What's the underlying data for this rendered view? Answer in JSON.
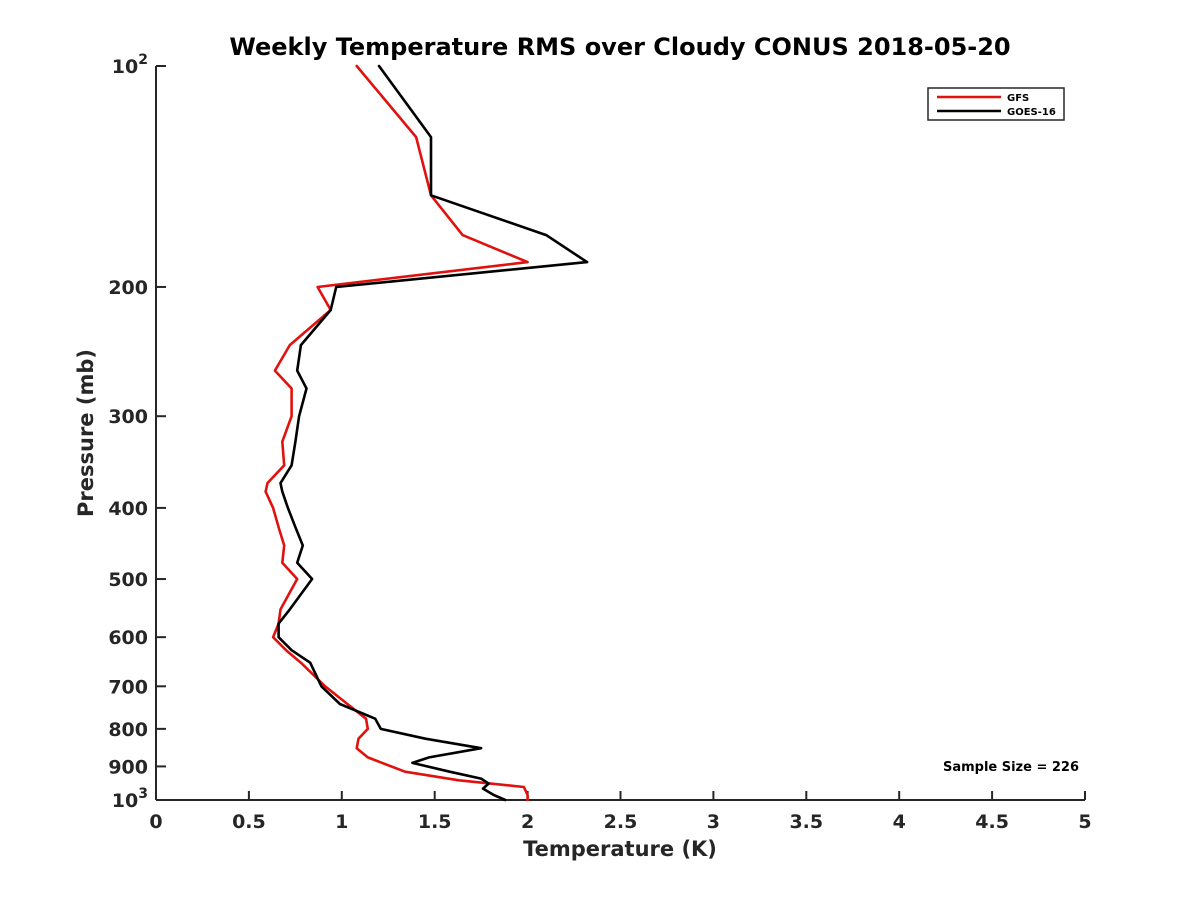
{
  "chart_data": {
    "type": "line",
    "title": "Weekly Temperature RMS over Cloudy CONUS 2018-05-20",
    "xlabel": "Temperature (K)",
    "ylabel": "Pressure (mb)",
    "xlim": [
      0,
      5
    ],
    "ylim": [
      100,
      1000
    ],
    "y_scale": "log",
    "y_reversed": true,
    "grid": false,
    "legend_position": "top-right",
    "x_ticks": [
      "0",
      "0.5",
      "1",
      "1.5",
      "2",
      "2.5",
      "3",
      "3.5",
      "4",
      "4.5",
      "5"
    ],
    "y_ticks": [
      {
        "value": 100,
        "base": "10",
        "exp": "2"
      },
      {
        "value": 200,
        "label": "200"
      },
      {
        "value": 300,
        "label": "300"
      },
      {
        "value": 400,
        "label": "400"
      },
      {
        "value": 500,
        "label": "500"
      },
      {
        "value": 600,
        "label": "600"
      },
      {
        "value": 700,
        "label": "700"
      },
      {
        "value": 800,
        "label": "800"
      },
      {
        "value": 900,
        "label": "900"
      },
      {
        "value": 1000,
        "base": "10",
        "exp": "3"
      }
    ],
    "annotation": "Sample Size = 226",
    "series": [
      {
        "name": "GFS",
        "color": "#e0120f",
        "points": [
          [
            1.08,
            100
          ],
          [
            1.4,
            125
          ],
          [
            1.48,
            150
          ],
          [
            1.65,
            170
          ],
          [
            2.0,
            185
          ],
          [
            0.87,
            200
          ],
          [
            0.94,
            215
          ],
          [
            0.72,
            240
          ],
          [
            0.64,
            260
          ],
          [
            0.73,
            275
          ],
          [
            0.73,
            300
          ],
          [
            0.68,
            325
          ],
          [
            0.69,
            350
          ],
          [
            0.6,
            370
          ],
          [
            0.59,
            380
          ],
          [
            0.63,
            400
          ],
          [
            0.66,
            425
          ],
          [
            0.69,
            450
          ],
          [
            0.68,
            475
          ],
          [
            0.76,
            500
          ],
          [
            0.67,
            550
          ],
          [
            0.66,
            575
          ],
          [
            0.63,
            600
          ],
          [
            0.7,
            625
          ],
          [
            0.78,
            650
          ],
          [
            0.91,
            700
          ],
          [
            1.03,
            740
          ],
          [
            1.13,
            775
          ],
          [
            1.14,
            800
          ],
          [
            1.09,
            825
          ],
          [
            1.08,
            850
          ],
          [
            1.14,
            875
          ],
          [
            1.34,
            915
          ],
          [
            1.63,
            940
          ],
          [
            1.98,
            960
          ],
          [
            2.0,
            985
          ],
          [
            2.0,
            1000
          ]
        ]
      },
      {
        "name": "GOES-16",
        "color": "#000000",
        "points": [
          [
            1.2,
            100
          ],
          [
            1.48,
            125
          ],
          [
            1.48,
            150
          ],
          [
            2.1,
            170
          ],
          [
            2.32,
            185
          ],
          [
            0.97,
            200
          ],
          [
            0.94,
            215
          ],
          [
            0.78,
            240
          ],
          [
            0.76,
            260
          ],
          [
            0.81,
            275
          ],
          [
            0.77,
            300
          ],
          [
            0.75,
            325
          ],
          [
            0.73,
            350
          ],
          [
            0.67,
            370
          ],
          [
            0.68,
            380
          ],
          [
            0.71,
            400
          ],
          [
            0.75,
            425
          ],
          [
            0.79,
            450
          ],
          [
            0.76,
            475
          ],
          [
            0.84,
            500
          ],
          [
            0.72,
            550
          ],
          [
            0.66,
            575
          ],
          [
            0.66,
            600
          ],
          [
            0.73,
            625
          ],
          [
            0.83,
            650
          ],
          [
            0.89,
            700
          ],
          [
            0.99,
            740
          ],
          [
            1.18,
            775
          ],
          [
            1.21,
            800
          ],
          [
            1.45,
            825
          ],
          [
            1.75,
            850
          ],
          [
            1.47,
            875
          ],
          [
            1.38,
            890
          ],
          [
            1.58,
            915
          ],
          [
            1.75,
            935
          ],
          [
            1.79,
            950
          ],
          [
            1.76,
            965
          ],
          [
            1.82,
            985
          ],
          [
            1.88,
            1000
          ]
        ]
      }
    ]
  }
}
